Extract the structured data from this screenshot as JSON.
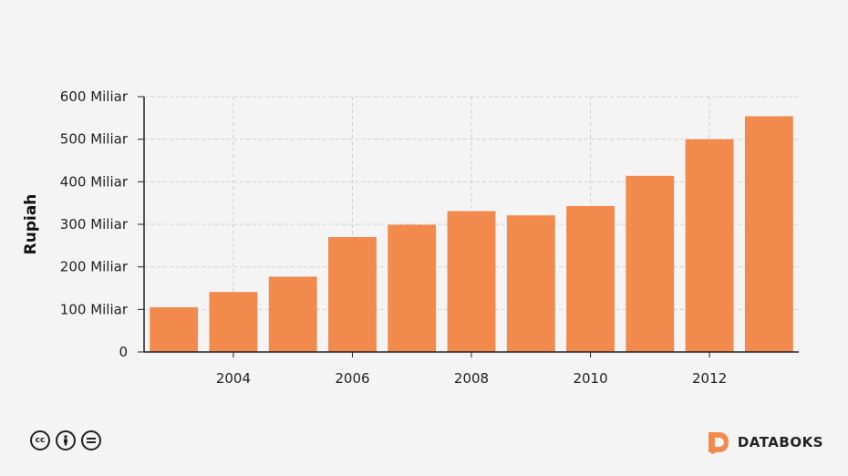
{
  "chart_data": {
    "type": "bar",
    "ylabel": "Rupiah",
    "xlabel": "",
    "x": [
      2003,
      2004,
      2005,
      2006,
      2007,
      2008,
      2009,
      2010,
      2011,
      2012,
      2013
    ],
    "values": [
      105,
      141,
      177,
      270,
      299,
      331,
      321,
      343,
      414,
      500,
      554
    ],
    "value_unit": "Miliar",
    "ylim": [
      0,
      600
    ],
    "yticks": [
      0,
      100,
      200,
      300,
      400,
      500,
      600
    ],
    "ytick_labels": [
      "0",
      "100 Miliar",
      "200 Miliar",
      "300 Miliar",
      "400 Miliar",
      "500 Miliar",
      "600 Miliar"
    ],
    "xticks": [
      2004,
      2006,
      2008,
      2010,
      2012
    ],
    "xtick_labels": [
      "2004",
      "2006",
      "2008",
      "2010",
      "2012"
    ],
    "grid": true,
    "bar_color": "#f28a4d"
  },
  "footer": {
    "license_icons": [
      "cc-icon",
      "by-icon",
      "nd-icon"
    ],
    "brand_name": "DATABOKS",
    "brand_color": "#f28a4d"
  }
}
